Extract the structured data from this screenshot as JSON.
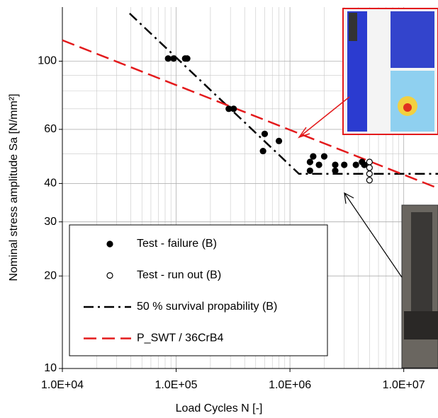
{
  "chart_data": {
    "type": "scatter",
    "x_label": "Load Cycles N [-]",
    "y_label": "Nominal stress amplitude  Sa [N/mm²]",
    "xscale": "log",
    "yscale": "log",
    "xlim": [
      10000,
      20000000
    ],
    "ylim": [
      10,
      150
    ],
    "xticks": [
      {
        "value": 10000,
        "label": "1.0E+04"
      },
      {
        "value": 100000,
        "label": "1.0E+05"
      },
      {
        "value": 1000000,
        "label": "1.0E+06"
      },
      {
        "value": 10000000,
        "label": "1.0E+07"
      }
    ],
    "yticks": [
      10,
      20,
      30,
      40,
      60,
      100
    ],
    "grid": true,
    "minor_grid": true,
    "legend": "lower left",
    "series": [
      {
        "name": "Test - failure (B)",
        "kind": "points",
        "marker": "filled",
        "color": "#000000",
        "x": [
          85000,
          95000,
          120000,
          125000,
          290000,
          320000,
          600000,
          800000,
          580000,
          1500000,
          1500000,
          1600000,
          1800000,
          2000000,
          2500000,
          2500000,
          3000000,
          3800000,
          4300000,
          4500000
        ],
        "values": [
          102,
          102,
          102,
          102,
          70,
          70,
          58,
          55,
          51,
          44,
          47,
          49,
          46,
          49,
          44,
          46,
          46,
          46,
          47,
          46
        ]
      },
      {
        "name": "Test - run out (B)",
        "kind": "points",
        "marker": "open",
        "color": "#000000",
        "x": [
          5000000,
          5000000,
          5000000,
          5000000
        ],
        "values": [
          41,
          43,
          45,
          47
        ]
      },
      {
        "name": "50 % survival propability (B)",
        "kind": "line",
        "style": "dash-dot",
        "color": "#000000",
        "x": [
          39000,
          1200000,
          20000000
        ],
        "values": [
          143,
          43,
          43
        ]
      },
      {
        "name": "P_SWT / 36CrB4",
        "kind": "line",
        "style": "dash",
        "color": "#e31a1c",
        "x": [
          10000,
          20000000
        ],
        "values": [
          117,
          38.6
        ]
      }
    ]
  }
}
